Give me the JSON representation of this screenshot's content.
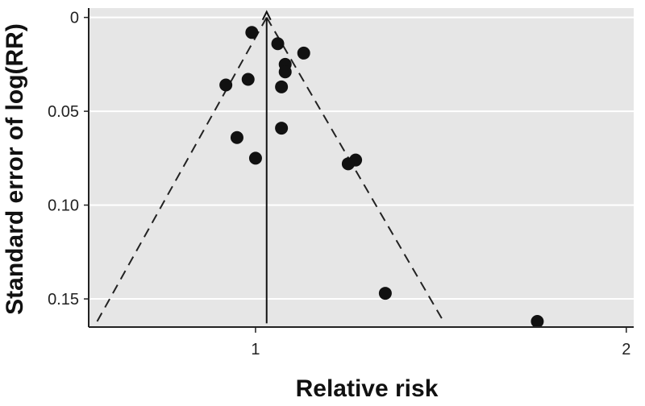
{
  "chart_data": {
    "type": "scatter",
    "title": "",
    "xlabel": "Relative risk",
    "ylabel": "Standard error of log(RR)",
    "xlim": [
      0.55,
      2.02
    ],
    "ylim": [
      0.165,
      -0.005
    ],
    "y_inverted": true,
    "grid": "horizontal",
    "background": "#e6e6e6",
    "x_ticks": [
      {
        "value": 1,
        "label": "1"
      },
      {
        "value": 2,
        "label": "2"
      }
    ],
    "y_ticks": [
      {
        "value": 0,
        "label": "0"
      },
      {
        "value": 0.05,
        "label": "0.05"
      },
      {
        "value": 0.1,
        "label": "0.10"
      },
      {
        "value": 0.15,
        "label": "0.15"
      }
    ],
    "points": [
      {
        "x": 0.99,
        "y": 0.008
      },
      {
        "x": 1.06,
        "y": 0.014
      },
      {
        "x": 1.13,
        "y": 0.019
      },
      {
        "x": 1.08,
        "y": 0.025
      },
      {
        "x": 1.08,
        "y": 0.029
      },
      {
        "x": 0.98,
        "y": 0.033
      },
      {
        "x": 0.92,
        "y": 0.036
      },
      {
        "x": 1.07,
        "y": 0.037
      },
      {
        "x": 1.07,
        "y": 0.059
      },
      {
        "x": 0.95,
        "y": 0.064
      },
      {
        "x": 1.0,
        "y": 0.075
      },
      {
        "x": 1.27,
        "y": 0.076
      },
      {
        "x": 1.25,
        "y": 0.078
      },
      {
        "x": 1.35,
        "y": 0.147
      },
      {
        "x": 1.76,
        "y": 0.162
      }
    ],
    "reference_line": {
      "x": 1.03,
      "y_from": 0.163,
      "y_to": -0.003
    },
    "funnel_lines": [
      {
        "from": {
          "x": 1.03,
          "y": 0.0
        },
        "to": {
          "x": 0.57,
          "y": 0.163
        }
      },
      {
        "from": {
          "x": 1.03,
          "y": 0.0
        },
        "to": {
          "x": 1.51,
          "y": 0.163
        }
      }
    ]
  }
}
